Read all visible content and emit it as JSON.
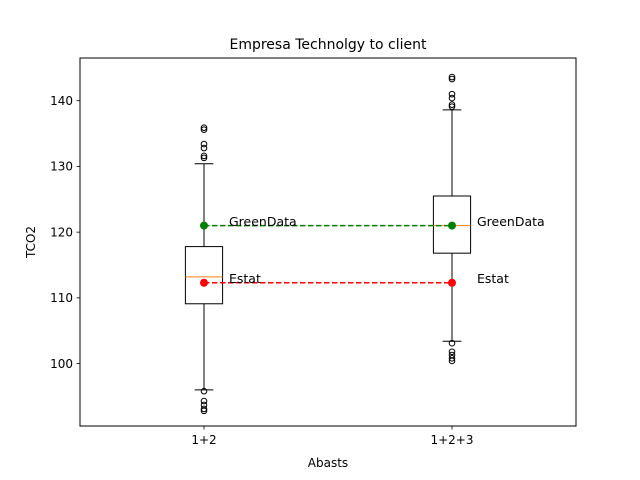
{
  "chart_data": {
    "type": "box",
    "title": "Empresa Technolgy to client",
    "xlabel": "Abasts",
    "ylabel": "TCO2",
    "categories": [
      "1+2",
      "1+2+3"
    ],
    "ylim": [
      90.5,
      146.5
    ],
    "xlim": [
      0.5,
      2.5
    ],
    "yticks": [
      100,
      110,
      120,
      130,
      140
    ],
    "grid": false,
    "boxes": [
      {
        "category": "1+2",
        "whisker_low": 96.0,
        "q1": 109.1,
        "median": 113.2,
        "q3": 117.8,
        "whisker_high": 130.4,
        "outliers_low": [
          95.8,
          94.3,
          93.7,
          93.1,
          92.8
        ],
        "outliers_high": [
          131.3,
          131.6,
          132.8,
          133.4,
          135.6,
          135.9
        ]
      },
      {
        "category": "1+2+3",
        "whisker_low": 103.4,
        "q1": 116.8,
        "median": 121.0,
        "q3": 125.5,
        "whisker_high": 138.6,
        "outliers_low": [
          103.1,
          101.8,
          101.3,
          100.8,
          100.4
        ],
        "outliers_high": [
          139.1,
          139.4,
          140.4,
          141.0,
          143.3,
          143.6
        ]
      }
    ],
    "series": [
      {
        "name": "GreenData",
        "color": "#008000",
        "values": [
          121.0,
          121.0
        ]
      },
      {
        "name": "Estat",
        "color": "#ff0000",
        "values": [
          112.3,
          112.3
        ]
      }
    ],
    "annotations": [
      {
        "text": "GreenData",
        "category": "1+2",
        "y": 121.0
      },
      {
        "text": "Estat",
        "category": "1+2",
        "y": 112.3
      },
      {
        "text": "GreenData",
        "category": "1+2+3",
        "y": 121.0
      },
      {
        "text": "Estat",
        "category": "1+2+3",
        "y": 112.3
      }
    ],
    "colors": {
      "median": "#ff7f0e",
      "box": "#000000"
    }
  }
}
